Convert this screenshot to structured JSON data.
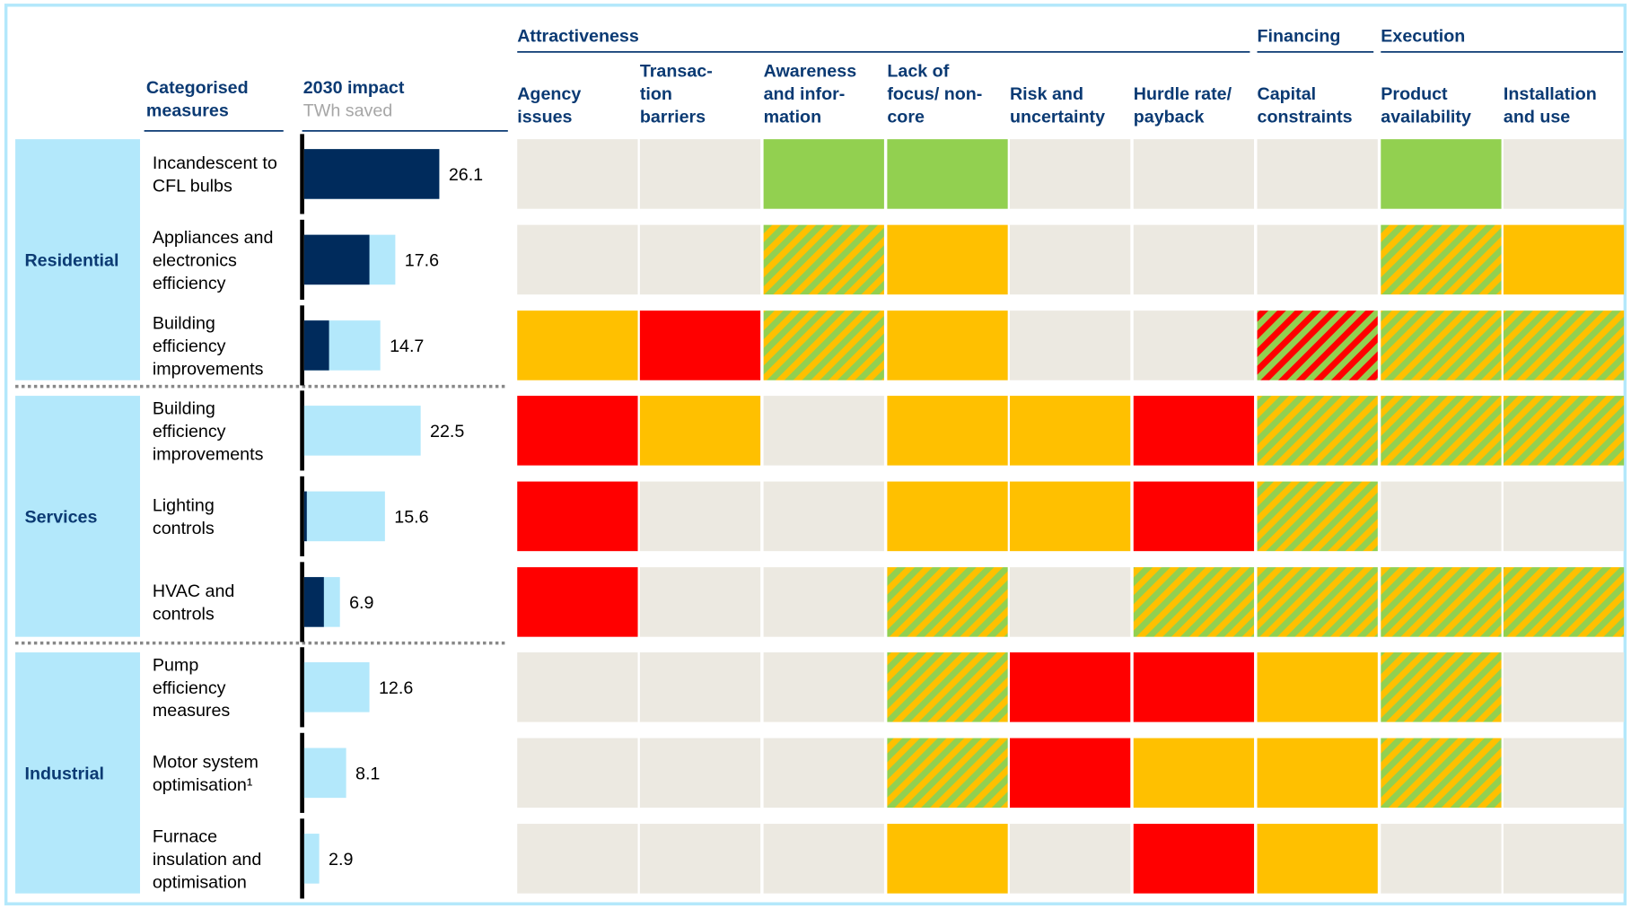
{
  "header": {
    "categories_label": [
      "Categorised",
      "measures"
    ],
    "impact_label": "2030 impact",
    "impact_unit": "TWh saved",
    "groups": [
      {
        "name": "Attractiveness",
        "span": 6
      },
      {
        "name": "Financing",
        "span": 1
      },
      {
        "name": "Execution",
        "span": 2
      }
    ],
    "columns": [
      [
        "Agency",
        "issues"
      ],
      [
        "Transac-",
        "tion",
        "barriers"
      ],
      [
        "Awareness",
        "and infor-",
        "mation"
      ],
      [
        "Lack of",
        "focus/ non-",
        "core"
      ],
      [
        "Risk and",
        "uncertainty"
      ],
      [
        "Hurdle rate/",
        "payback"
      ],
      [
        "Capital",
        "constraints"
      ],
      [
        "Product",
        "availability"
      ],
      [
        "Installation",
        "and use"
      ]
    ]
  },
  "bar_colors": {
    "dark": "#002b5c",
    "light": "#b3e8fb"
  },
  "impact_scale": [
    0,
    26.1
  ],
  "sectors": [
    {
      "name": "Residential",
      "measures": [
        {
          "label": [
            "Incandescent to",
            "CFL bulbs"
          ],
          "impact": 26.1,
          "dark": 26.1,
          "cells": [
            [
              "#ece9e1"
            ],
            [
              "#ece9e1"
            ],
            [
              "#92d050"
            ],
            [
              "#92d050"
            ],
            [
              "#ece9e1"
            ],
            [
              "#ece9e1"
            ],
            [
              "#ece9e1"
            ],
            [
              "#92d050"
            ],
            [
              "#ece9e1"
            ]
          ]
        },
        {
          "label": [
            "Appliances and",
            "electronics",
            "efficiency"
          ],
          "impact": 17.6,
          "dark": 12.6,
          "cells": [
            [
              "#ece9e1"
            ],
            [
              "#ece9e1"
            ],
            [
              "#92d050",
              "#ffc000"
            ],
            [
              "#ffc000"
            ],
            [
              "#ece9e1"
            ],
            [
              "#ece9e1"
            ],
            [
              "#ece9e1"
            ],
            [
              "#92d050",
              "#ffc000"
            ],
            [
              "#ffc000"
            ]
          ]
        },
        {
          "label": [
            "Building",
            "efficiency",
            "improvements"
          ],
          "impact": 14.7,
          "dark": 4.8,
          "cells": [
            [
              "#ffc000"
            ],
            [
              "#ff0000"
            ],
            [
              "#92d050",
              "#ffc000"
            ],
            [
              "#ffc000"
            ],
            [
              "#ece9e1"
            ],
            [
              "#ece9e1"
            ],
            [
              "#ff0000",
              "#92d050"
            ],
            [
              "#92d050",
              "#ffc000"
            ],
            [
              "#92d050",
              "#ffc000"
            ]
          ]
        }
      ]
    },
    {
      "name": "Services",
      "measures": [
        {
          "label": [
            "Building",
            "efficiency",
            "improvements"
          ],
          "impact": 22.5,
          "dark": 0,
          "cells": [
            [
              "#ff0000"
            ],
            [
              "#ffc000"
            ],
            [
              "#ece9e1"
            ],
            [
              "#ffc000"
            ],
            [
              "#ffc000"
            ],
            [
              "#ff0000"
            ],
            [
              "#92d050",
              "#ffc000"
            ],
            [
              "#92d050",
              "#ffc000"
            ],
            [
              "#92d050",
              "#ffc000"
            ]
          ]
        },
        {
          "label": [
            "Lighting",
            "controls"
          ],
          "impact": 15.6,
          "dark": 0.5,
          "cells": [
            [
              "#ff0000"
            ],
            [
              "#ece9e1"
            ],
            [
              "#ece9e1"
            ],
            [
              "#ffc000"
            ],
            [
              "#ffc000"
            ],
            [
              "#ff0000"
            ],
            [
              "#92d050",
              "#ffc000"
            ],
            [
              "#ece9e1"
            ],
            [
              "#ece9e1"
            ]
          ]
        },
        {
          "label": [
            "HVAC and",
            "controls"
          ],
          "impact": 6.9,
          "dark": 3.8,
          "cells": [
            [
              "#ff0000"
            ],
            [
              "#ece9e1"
            ],
            [
              "#ece9e1"
            ],
            [
              "#92d050",
              "#ffc000"
            ],
            [
              "#ece9e1"
            ],
            [
              "#92d050",
              "#ffc000"
            ],
            [
              "#92d050",
              "#ffc000"
            ],
            [
              "#92d050",
              "#ffc000"
            ],
            [
              "#92d050",
              "#ffc000"
            ]
          ]
        }
      ]
    },
    {
      "name": "Industrial",
      "measures": [
        {
          "label": [
            "Pump",
            "efficiency",
            "measures"
          ],
          "impact": 12.6,
          "dark": 0,
          "cells": [
            [
              "#ece9e1"
            ],
            [
              "#ece9e1"
            ],
            [
              "#ece9e1"
            ],
            [
              "#92d050",
              "#ffc000"
            ],
            [
              "#ff0000"
            ],
            [
              "#ff0000"
            ],
            [
              "#ffc000"
            ],
            [
              "#92d050",
              "#ffc000"
            ],
            [
              "#ece9e1"
            ]
          ]
        },
        {
          "label": [
            "Motor system",
            "optimisation¹"
          ],
          "impact": 8.1,
          "dark": 0,
          "cells": [
            [
              "#ece9e1"
            ],
            [
              "#ece9e1"
            ],
            [
              "#ece9e1"
            ],
            [
              "#92d050",
              "#ffc000"
            ],
            [
              "#ff0000"
            ],
            [
              "#ffc000"
            ],
            [
              "#ffc000"
            ],
            [
              "#92d050",
              "#ffc000"
            ],
            [
              "#ece9e1"
            ]
          ]
        },
        {
          "label": [
            "Furnace",
            "insulation and",
            "optimisation"
          ],
          "impact": 2.9,
          "dark": 0,
          "cells": [
            [
              "#ece9e1"
            ],
            [
              "#ece9e1"
            ],
            [
              "#ece9e1"
            ],
            [
              "#ffc000"
            ],
            [
              "#ece9e1"
            ],
            [
              "#ff0000"
            ],
            [
              "#ffc000"
            ],
            [
              "#ece9e1"
            ],
            [
              "#ece9e1"
            ]
          ]
        }
      ]
    }
  ]
}
